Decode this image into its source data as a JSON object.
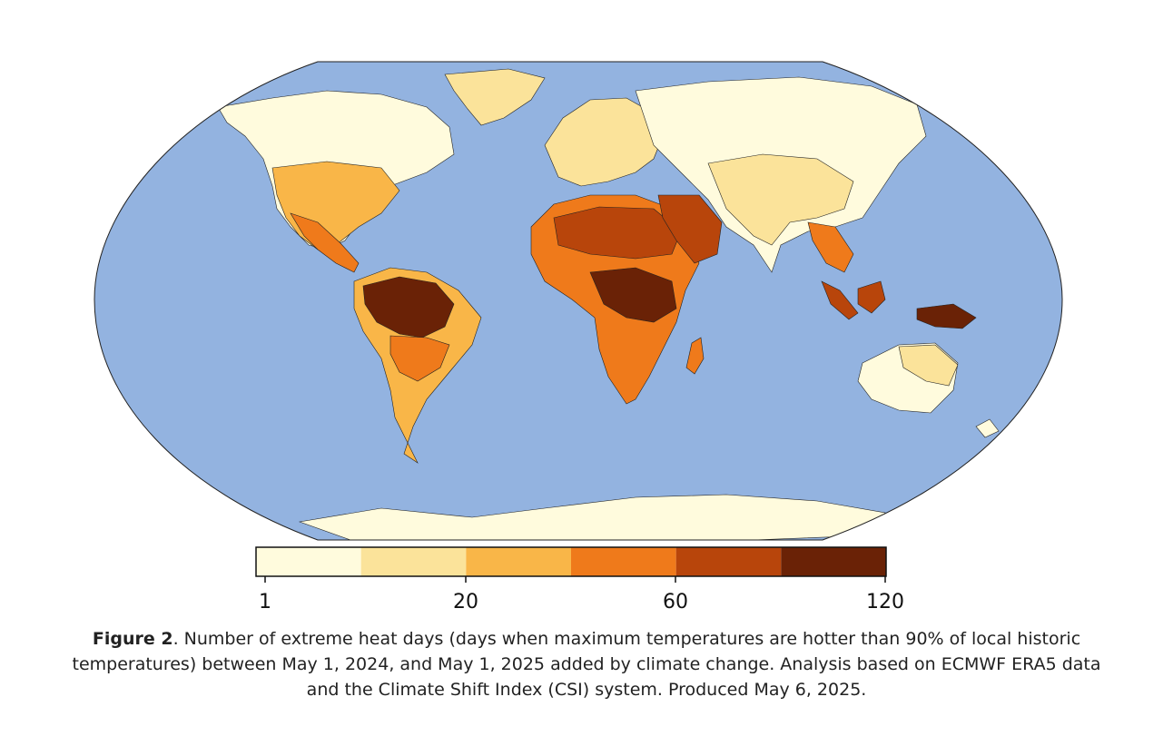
{
  "colors": {
    "ocean": "#93b3e0",
    "outline": "#222222",
    "scale": [
      "#fffbdd",
      "#fbe39a",
      "#f9b648",
      "#ef7a1b",
      "#b8450b",
      "#6a2206"
    ]
  },
  "colorbar": {
    "ticks": [
      "1",
      "20",
      "60",
      "120"
    ]
  },
  "caption": {
    "label": "Figure 2",
    "text": ". Number of extreme heat days (days when maximum temperatures are hotter than 90% of local historic temperatures) between May 1, 2024, and May 1, 2025 added by climate change. Analysis based on ECMWF ERA5 data and the Climate Shift Index (CSI) system. Produced May 6, 2025."
  }
}
